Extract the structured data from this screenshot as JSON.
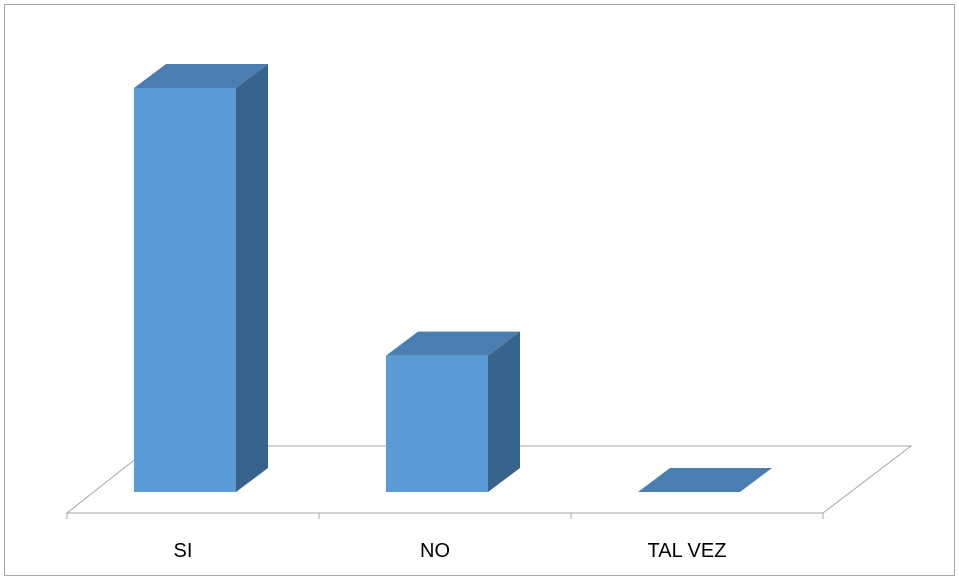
{
  "chart_data": {
    "type": "bar",
    "style": "3d-column",
    "categories": [
      "SI",
      "NO",
      "TAL VEZ"
    ],
    "values": [
      80,
      27,
      0
    ],
    "ylim": [
      0,
      80
    ],
    "title": "",
    "xlabel": "",
    "ylabel": "",
    "grid": false,
    "legend": "none",
    "colors": {
      "bar_front": "#5b9bd5",
      "bar_side": "#37648c",
      "bar_top": "#4a7eb0",
      "floor_stroke": "#a6a6a6",
      "border": "#a6a6a6"
    }
  }
}
